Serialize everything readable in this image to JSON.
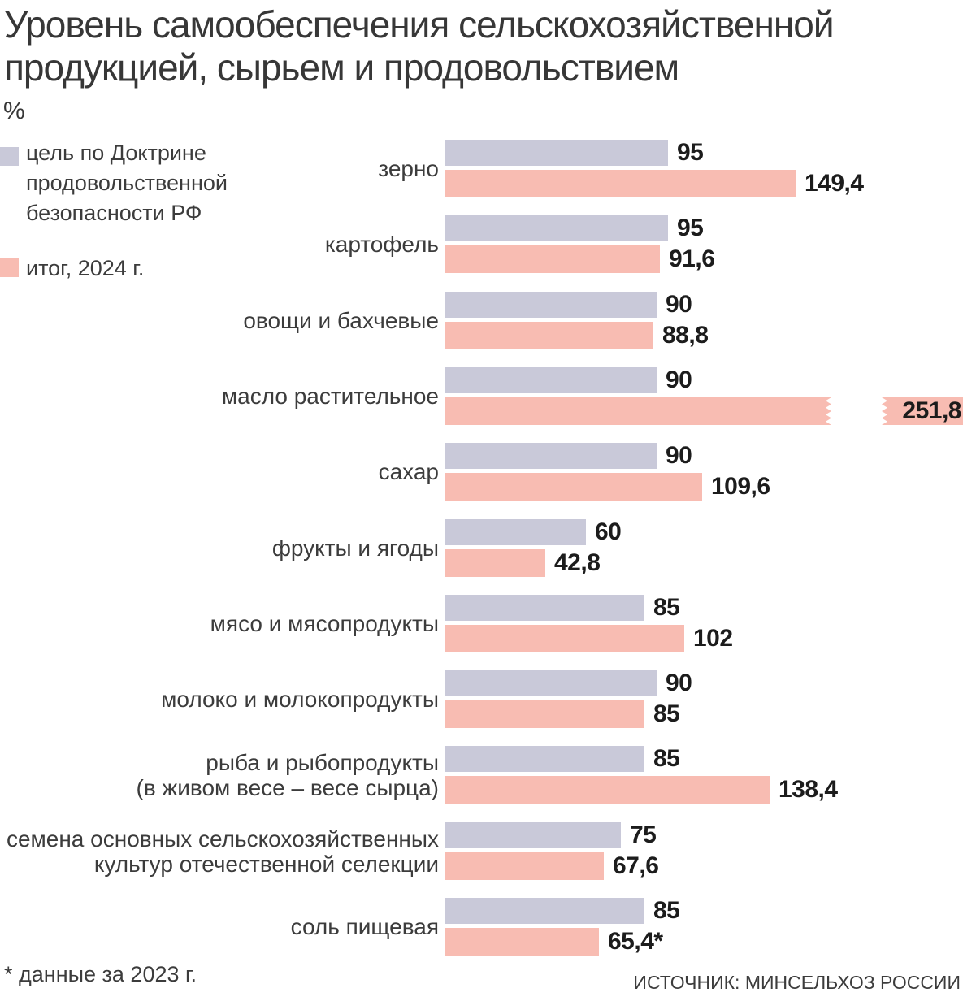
{
  "title": "Уровень самообеспечения сельскохозяйственной\nпродукцией, сырьем и продовольствием",
  "unit_label": "%",
  "legend": {
    "target": {
      "label": "цель по Доктрине продовольственной безопасности РФ",
      "color": "#c9c9d9"
    },
    "actual": {
      "label": "итог, 2024 г.",
      "color": "#f8bcb2"
    }
  },
  "footer": {
    "note": "* данные за 2023 г.",
    "source": "ИСТОЧНИК: МИНСЕЛЬХОЗ РОССИИ"
  },
  "chart_data": {
    "type": "bar",
    "orientation": "horizontal",
    "unit": "%",
    "grid": false,
    "legend_position": "top-left",
    "categories": [
      "зерно",
      "картофель",
      "овощи и бахчевые",
      "масло растительное",
      "сахар",
      "фрукты и ягоды",
      "мясо и мясопродукты",
      "молоко и молокопродукты",
      "рыба и рыбопродукты\n(в живом весе – весе сырца)",
      "семена основных сельскохозяйственных\nкультур отечественной селекции",
      "соль пищевая"
    ],
    "series": [
      {
        "name": "цель по Доктрине продовольственной безопасности РФ",
        "color": "#c9c9d9",
        "values": [
          95,
          95,
          90,
          90,
          90,
          60,
          85,
          90,
          85,
          75,
          85
        ],
        "labels": [
          "95",
          "95",
          "90",
          "90",
          "90",
          "60",
          "85",
          "90",
          "85",
          "75",
          "85"
        ]
      },
      {
        "name": "итог, 2024 г.",
        "color": "#f8bcb2",
        "values": [
          149.4,
          91.6,
          88.8,
          251.8,
          109.6,
          42.8,
          102,
          85,
          138.4,
          67.6,
          65.4
        ],
        "labels": [
          "149,4",
          "91,6",
          "88,8",
          "251,8",
          "109,6",
          "42,8",
          "102",
          "85",
          "138,4",
          "67,6",
          "65,4*"
        ],
        "broken_bar_index": 3
      }
    ],
    "axis_break": {
      "category": "масло растительное",
      "value": 251.8
    }
  }
}
